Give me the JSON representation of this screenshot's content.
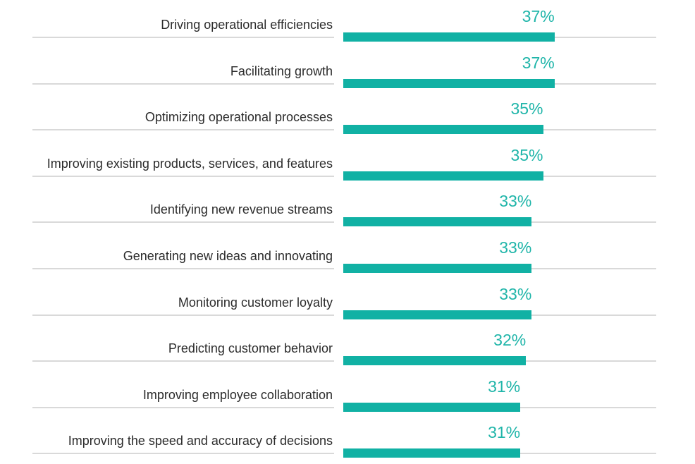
{
  "chart_data": {
    "type": "bar",
    "orientation": "horizontal",
    "categories": [
      "Driving operational efficiencies",
      "Facilitating growth",
      "Optimizing operational processes",
      "Improving existing products, services, and features",
      "Identifying new revenue streams",
      "Generating new ideas and innovating",
      "Monitoring customer loyalty",
      "Predicting customer behavior",
      "Improving employee collaboration",
      "Improving the speed and accuracy of decisions"
    ],
    "values": [
      37,
      37,
      35,
      35,
      33,
      33,
      33,
      32,
      31,
      31
    ],
    "value_labels": [
      "37%",
      "37%",
      "35%",
      "35%",
      "33%",
      "33%",
      "33%",
      "32%",
      "31%",
      "31%"
    ],
    "unit": "%",
    "xlim": [
      0,
      100
    ],
    "grid": false,
    "legend": "none"
  },
  "colors": {
    "bar": "#11b1a4",
    "value_text": "#1fb5a9",
    "label_text": "#2b2b2b",
    "rule": "#d9d9d9"
  }
}
